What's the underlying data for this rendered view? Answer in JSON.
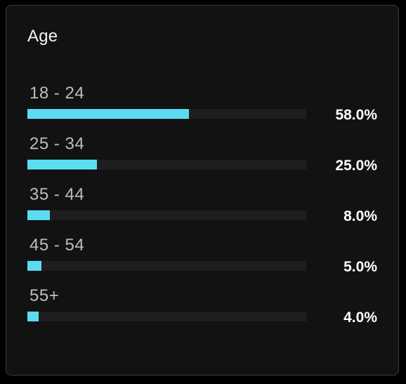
{
  "card": {
    "title": "Age"
  },
  "accent_color": "#5bdcf2",
  "rows": [
    {
      "label": "18 - 24",
      "percent_text": "58.0%",
      "fill": 0.58
    },
    {
      "label": "25 - 34",
      "percent_text": "25.0%",
      "fill": 0.25
    },
    {
      "label": "35 - 44",
      "percent_text": "8.0%",
      "fill": 0.08
    },
    {
      "label": "45 - 54",
      "percent_text": "5.0%",
      "fill": 0.05
    },
    {
      "label": "55+",
      "percent_text": "4.0%",
      "fill": 0.04
    }
  ]
}
